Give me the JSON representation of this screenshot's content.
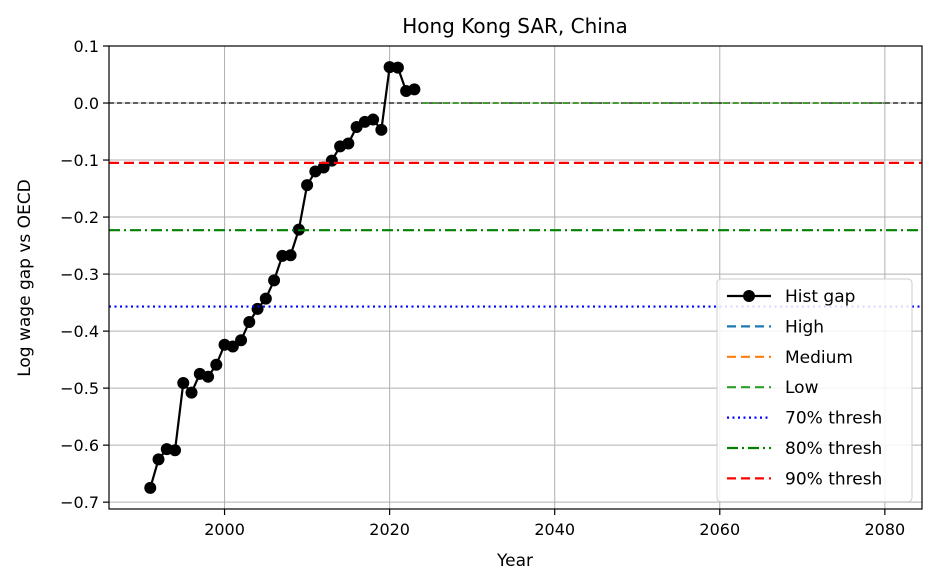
{
  "chart_data": {
    "type": "line",
    "title": "Hong Kong SAR, China",
    "xlabel": "Year",
    "ylabel": "Log wage gap vs OECD",
    "xlim": [
      1986,
      2084.5
    ],
    "ylim": [
      -0.712,
      0.1
    ],
    "xticks": [
      2000,
      2020,
      2040,
      2060,
      2080
    ],
    "yticks": [
      0.1,
      0.0,
      -0.1,
      -0.2,
      -0.3,
      -0.4,
      -0.5,
      -0.6,
      -0.7
    ],
    "ytick_labels": [
      "0.1",
      "0.0",
      "−0.1",
      "−0.2",
      "−0.3",
      "−0.4",
      "−0.5",
      "−0.6",
      "−0.7"
    ],
    "grid": true,
    "legend_position": "lower-right",
    "zero_line": {
      "y": 0.0,
      "color": "#000000"
    },
    "series": [
      {
        "name": "Hist gap",
        "style": "solid-marker",
        "color": "#000000",
        "x": [
          1991,
          1992,
          1993,
          1994,
          1995,
          1996,
          1997,
          1998,
          1999,
          2000,
          2001,
          2002,
          2003,
          2004,
          2005,
          2006,
          2007,
          2008,
          2009,
          2010,
          2011,
          2012,
          2013,
          2014,
          2015,
          2016,
          2017,
          2018,
          2019,
          2020,
          2021,
          2022,
          2023
        ],
        "y": [
          -0.675,
          -0.625,
          -0.607,
          -0.609,
          -0.491,
          -0.508,
          -0.475,
          -0.48,
          -0.459,
          -0.424,
          -0.427,
          -0.416,
          -0.384,
          -0.361,
          -0.343,
          -0.311,
          -0.268,
          -0.267,
          -0.222,
          -0.144,
          -0.12,
          -0.113,
          -0.101,
          -0.076,
          -0.071,
          -0.042,
          -0.033,
          -0.029,
          -0.047,
          0.063,
          0.062,
          0.021,
          0.024
        ]
      },
      {
        "name": "High",
        "style": "dashed",
        "color": "#1f77b4",
        "x": [
          2024,
          2080
        ],
        "y": [
          0.0,
          0.0
        ]
      },
      {
        "name": "Medium",
        "style": "dashed",
        "color": "#ff7f0e",
        "x": [
          2024,
          2080
        ],
        "y": [
          0.0,
          0.0
        ]
      },
      {
        "name": "Low",
        "style": "dashed",
        "color": "#2ca02c",
        "x": [
          2024,
          2080
        ],
        "y": [
          0.0,
          0.0
        ]
      },
      {
        "name": "70% thresh",
        "style": "dotted",
        "color": "#0000ff",
        "hline": -0.357
      },
      {
        "name": "80% thresh",
        "style": "dashdot",
        "color": "#008000",
        "hline": -0.223
      },
      {
        "name": "90% thresh",
        "style": "dashed",
        "color": "#ff0000",
        "hline": -0.105
      }
    ]
  }
}
